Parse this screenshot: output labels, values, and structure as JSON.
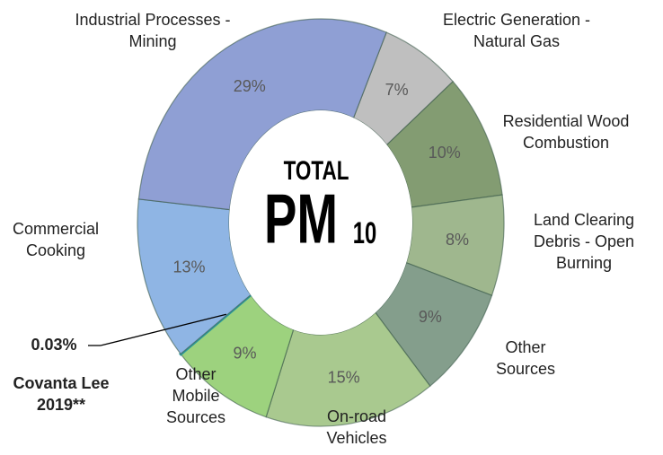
{
  "chart_data": {
    "type": "donut",
    "center_text": {
      "line1": "TOTAL",
      "main": "PM",
      "sub": "10"
    },
    "categories": [
      "Electric Generation -\nNatural Gas",
      "Residential Wood\nCombustion",
      "Land Clearing\nDebris - Open\nBurning",
      "Other\nSources",
      "On-road\nVehicles",
      "Other\nMobile\nSources",
      "Covanta Lee\n2019**",
      "Commercial\nCooking",
      "Industrial Processes -\nMining"
    ],
    "values": [
      7,
      10,
      8,
      9,
      15,
      9,
      0.03,
      13,
      29
    ],
    "value_labels": [
      "7%",
      "10%",
      "8%",
      "9%",
      "15%",
      "9%",
      "0.03%",
      "13%",
      "29%"
    ],
    "colors": [
      "#bfbfbf",
      "#839c72",
      "#9fb78e",
      "#849e8c",
      "#a9c98f",
      "#9dd27e",
      "#2e9a9a",
      "#8fb5e4",
      "#8f9fd4"
    ]
  }
}
